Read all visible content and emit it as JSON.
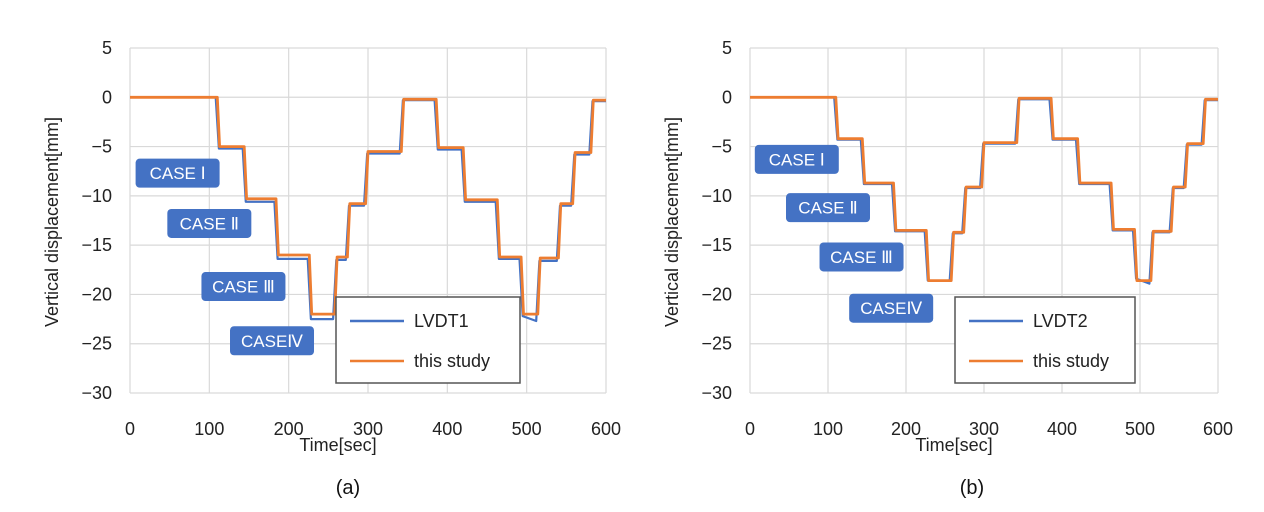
{
  "chart_data": [
    {
      "type": "line",
      "caption": "(a)",
      "xlabel": "Time[sec]",
      "ylabel": "Vertical displacement[mm]",
      "xlim": [
        0,
        600
      ],
      "ylim": [
        -30,
        5
      ],
      "xticks": [
        0,
        100,
        200,
        300,
        400,
        500,
        600
      ],
      "yticks": [
        5,
        0,
        -5,
        -10,
        -15,
        -20,
        -25,
        -30
      ],
      "grid": true,
      "legend_position": "bottom-right",
      "series": [
        {
          "name": "LVDT1",
          "color": "#4472c4",
          "x": [
            0,
            108,
            112,
            142,
            146,
            182,
            186,
            224,
            228,
            256,
            260,
            272,
            276,
            295,
            299,
            340,
            344,
            384,
            388,
            418,
            422,
            461,
            465,
            491,
            495,
            512,
            516,
            538,
            542,
            556,
            560,
            579,
            583,
            600
          ],
          "y": [
            0,
            0,
            -5.2,
            -5.2,
            -10.6,
            -10.6,
            -16.4,
            -16.4,
            -22.5,
            -22.5,
            -16.5,
            -16.5,
            -11.0,
            -11.0,
            -5.7,
            -5.7,
            -0.3,
            -0.3,
            -5.3,
            -5.3,
            -10.6,
            -10.6,
            -16.4,
            -16.4,
            -22.2,
            -22.7,
            -16.6,
            -16.6,
            -11.0,
            -11.0,
            -5.8,
            -5.8,
            -0.4,
            -0.4
          ]
        },
        {
          "name": "this study",
          "color": "#ed7d31",
          "x": [
            0,
            110,
            113,
            144,
            147,
            184,
            187,
            226,
            229,
            258,
            261,
            274,
            277,
            297,
            300,
            342,
            345,
            386,
            389,
            420,
            423,
            463,
            466,
            493,
            496,
            514,
            517,
            540,
            543,
            558,
            561,
            581,
            584,
            600
          ],
          "y": [
            0,
            0,
            -5.0,
            -5.0,
            -10.3,
            -10.3,
            -16.0,
            -16.0,
            -22.0,
            -22.0,
            -16.2,
            -16.2,
            -10.8,
            -10.8,
            -5.5,
            -5.5,
            -0.2,
            -0.2,
            -5.1,
            -5.1,
            -10.4,
            -10.4,
            -16.2,
            -16.2,
            -22.0,
            -22.0,
            -16.3,
            -16.3,
            -10.8,
            -10.8,
            -5.6,
            -5.6,
            -0.3,
            -0.3
          ]
        }
      ],
      "annotations": [
        {
          "text": "CASE Ⅰ",
          "x": 60,
          "y": -7.7
        },
        {
          "text": "CASE Ⅱ",
          "x": 100,
          "y": -12.8
        },
        {
          "text": "CASE Ⅲ",
          "x": 143,
          "y": -19.2
        },
        {
          "text": "CASEⅣ",
          "x": 179,
          "y": -24.7
        }
      ]
    },
    {
      "type": "line",
      "caption": "(b)",
      "xlabel": "Time[sec]",
      "ylabel": "Vertical displacement[mm]",
      "xlim": [
        0,
        600
      ],
      "ylim": [
        -30,
        5
      ],
      "xticks": [
        0,
        100,
        200,
        300,
        400,
        500,
        600
      ],
      "yticks": [
        5,
        0,
        -5,
        -10,
        -15,
        -20,
        -25,
        -30
      ],
      "grid": true,
      "legend_position": "bottom-right",
      "series": [
        {
          "name": "LVDT2",
          "color": "#4472c4",
          "x": [
            0,
            108,
            112,
            142,
            146,
            182,
            186,
            224,
            228,
            256,
            260,
            272,
            276,
            295,
            299,
            340,
            344,
            384,
            388,
            418,
            422,
            461,
            465,
            491,
            495,
            512,
            516,
            538,
            542,
            556,
            560,
            579,
            583,
            600
          ],
          "y": [
            0,
            0,
            -4.3,
            -4.3,
            -8.8,
            -8.8,
            -13.6,
            -13.6,
            -18.6,
            -18.6,
            -13.8,
            -13.8,
            -9.2,
            -9.2,
            -4.7,
            -4.7,
            -0.2,
            -0.2,
            -4.3,
            -4.3,
            -8.8,
            -8.8,
            -13.5,
            -13.5,
            -18.4,
            -18.9,
            -13.7,
            -13.7,
            -9.2,
            -9.2,
            -4.8,
            -4.8,
            -0.3,
            -0.3
          ]
        },
        {
          "name": "this study",
          "color": "#ed7d31",
          "x": [
            0,
            110,
            113,
            144,
            147,
            184,
            187,
            226,
            229,
            258,
            261,
            274,
            277,
            297,
            300,
            342,
            345,
            386,
            389,
            420,
            423,
            463,
            466,
            493,
            496,
            514,
            517,
            540,
            543,
            558,
            561,
            581,
            584,
            600
          ],
          "y": [
            0,
            0,
            -4.2,
            -4.2,
            -8.7,
            -8.7,
            -13.5,
            -13.5,
            -18.6,
            -18.6,
            -13.7,
            -13.7,
            -9.1,
            -9.1,
            -4.6,
            -4.6,
            -0.1,
            -0.1,
            -4.2,
            -4.2,
            -8.7,
            -8.7,
            -13.4,
            -13.4,
            -18.6,
            -18.6,
            -13.6,
            -13.6,
            -9.1,
            -9.1,
            -4.7,
            -4.7,
            -0.2,
            -0.2
          ]
        }
      ],
      "annotations": [
        {
          "text": "CASE Ⅰ",
          "x": 60,
          "y": -6.3
        },
        {
          "text": "CASE Ⅱ",
          "x": 100,
          "y": -11.2
        },
        {
          "text": "CASE Ⅲ",
          "x": 143,
          "y": -16.2
        },
        {
          "text": "CASEⅣ",
          "x": 181,
          "y": -21.4
        }
      ]
    }
  ]
}
